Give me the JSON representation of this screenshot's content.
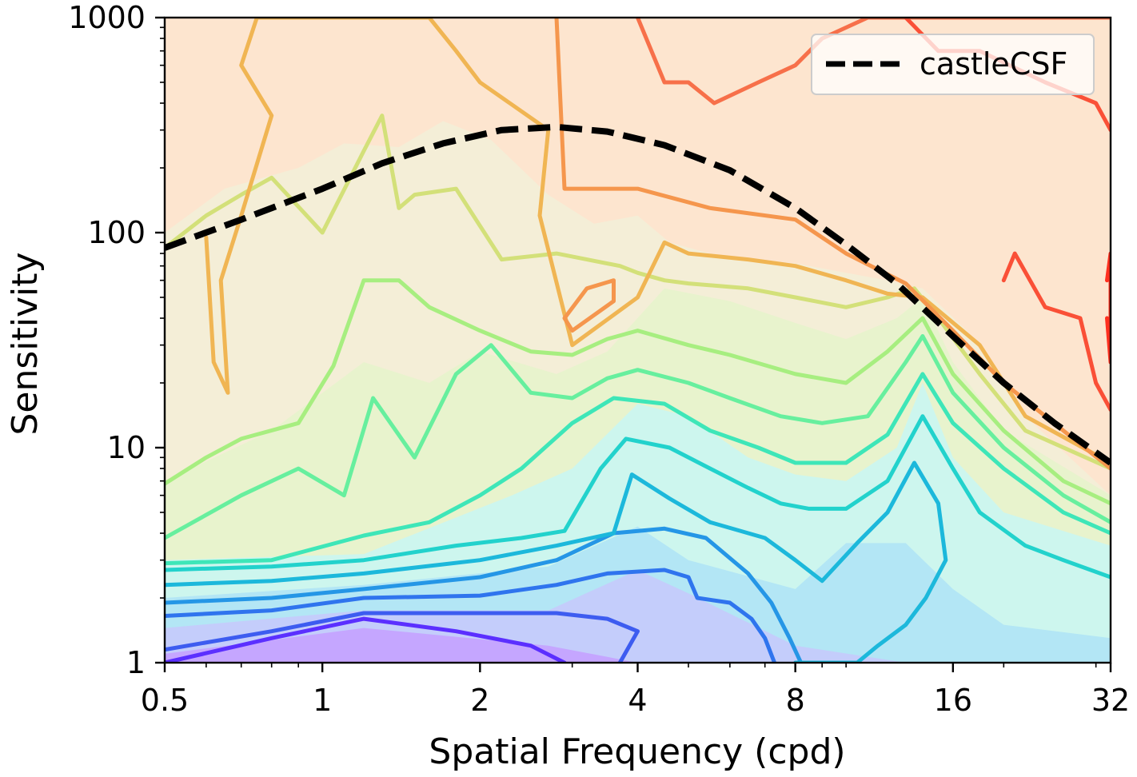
{
  "chart_data": {
    "type": "contour",
    "title": "",
    "xlabel": "Spatial Frequency (cpd)",
    "ylabel": "Sensitivity",
    "x_scale": "log2",
    "y_scale": "log10",
    "xlim": [
      0.5,
      32
    ],
    "ylim": [
      1,
      1000
    ],
    "x_ticks": [
      {
        "value": 0.5,
        "label": "0.5"
      },
      {
        "value": 1,
        "label": "1"
      },
      {
        "value": 2,
        "label": "2"
      },
      {
        "value": 4,
        "label": "4"
      },
      {
        "value": 8,
        "label": "8"
      },
      {
        "value": 16,
        "label": "16"
      },
      {
        "value": 32,
        "label": "32"
      }
    ],
    "y_ticks": [
      {
        "value": 1,
        "label": "1"
      },
      {
        "value": 10,
        "label": "10"
      },
      {
        "value": 100,
        "label": "100"
      },
      {
        "value": 1000,
        "label": "1000"
      }
    ],
    "legend": {
      "position": "top-right",
      "entries": [
        {
          "label": "castleCSF",
          "style": "dashed",
          "color": "#000000"
        }
      ]
    },
    "colormap": "rainbow",
    "series": [
      {
        "name": "castleCSF",
        "style": "dashed",
        "color": "#000000",
        "x": [
          0.5,
          0.7,
          1.0,
          1.3,
          1.7,
          2.2,
          2.8,
          3.5,
          4.5,
          6.0,
          8.0,
          10.0,
          12.5,
          16.0,
          20.0,
          25.0,
          32.0
        ],
        "y": [
          85,
          115,
          160,
          210,
          260,
          300,
          310,
          295,
          255,
          195,
          130,
          88,
          58,
          33,
          20,
          13,
          8.5
        ]
      }
    ],
    "contour_bands": [
      {
        "color": "#c5a6ff",
        "x": [
          0.5,
          1.2,
          2.7,
          4.0,
          8.0,
          13.0,
          20.0,
          32.0
        ],
        "y": [
          1.1,
          1.45,
          1.2,
          1.0,
          1.0,
          1.0,
          1.0,
          1.0
        ]
      },
      {
        "color": "#c4cdfb",
        "x": [
          0.5,
          1.2,
          2.7,
          4.0,
          5.0,
          8.0,
          13.0,
          20.0,
          32.0
        ],
        "y": [
          1.45,
          1.75,
          1.75,
          2.7,
          2.1,
          1.2,
          1.0,
          1.0,
          1.0
        ]
      },
      {
        "color": "#b3e6f5",
        "x": [
          0.5,
          1.2,
          2.7,
          4.0,
          5.0,
          8.0,
          10.0,
          13.0,
          16.0,
          20.0,
          32.0
        ],
        "y": [
          2.0,
          2.3,
          2.8,
          4.3,
          3.0,
          2.2,
          3.6,
          3.6,
          2.2,
          1.5,
          1.3
        ]
      },
      {
        "color": "#cdf6ee",
        "x": [
          0.5,
          1.2,
          2.3,
          3.0,
          4.0,
          5.0,
          6.5,
          8.0,
          10.0,
          12.5,
          14.0,
          16.0,
          20.0,
          32.0
        ],
        "y": [
          3.0,
          3.2,
          6.0,
          8.0,
          16.0,
          14.0,
          9.0,
          7.5,
          7.0,
          10.0,
          20.0,
          9.0,
          5.0,
          3.5
        ]
      },
      {
        "color": "#e8f3cd",
        "x": [
          0.5,
          0.8,
          1.2,
          1.6,
          2.0,
          2.8,
          3.5,
          4.5,
          6.0,
          8.0,
          10.0,
          12.5,
          14.0,
          16.0,
          20.0,
          32.0
        ],
        "y": [
          7.0,
          12.0,
          25.0,
          20.0,
          28.0,
          22.0,
          28.0,
          55.0,
          48.0,
          38.0,
          32.0,
          40.0,
          50.0,
          25.0,
          12.0,
          6.0
        ]
      },
      {
        "color": "#f4eed7",
        "x": [
          0.5,
          0.65,
          0.9,
          1.1,
          1.4,
          1.7,
          2.1,
          2.7,
          3.3,
          4.0,
          4.6,
          5.5,
          6.5,
          8.0,
          10.0,
          12.0,
          14.0,
          17.0,
          22.0,
          32.0
        ],
        "y": [
          100,
          160,
          200,
          260,
          250,
          330,
          270,
          150,
          110,
          120,
          90,
          80,
          75,
          72,
          65,
          60,
          55,
          35,
          14,
          6
        ]
      },
      {
        "color": "#fde5cf",
        "x": [
          0.5,
          0.65,
          0.9,
          1.1,
          1.4,
          1.7,
          2.1,
          2.7,
          3.3,
          4.0,
          4.6,
          5.5,
          6.5,
          8.0,
          10.0,
          12.0,
          14.0,
          17.0,
          22.0,
          32.0
        ],
        "y": [
          1000,
          1000,
          1000,
          1000,
          1000,
          1000,
          1000,
          1000,
          1000,
          1000,
          1000,
          1000,
          1000,
          1000,
          1000,
          1000,
          1000,
          1000,
          1000,
          1000
        ]
      }
    ],
    "contour_lines": [
      {
        "color": "#5b2fff",
        "x": [
          0.5,
          0.8,
          1.2,
          1.8,
          2.5,
          2.9
        ],
        "y": [
          1.0,
          1.3,
          1.6,
          1.4,
          1.2,
          1.0
        ]
      },
      {
        "color": "#3d5cf0",
        "x": [
          0.5,
          0.8,
          1.2,
          2.0,
          2.8,
          3.5,
          4.0,
          3.7
        ],
        "y": [
          1.15,
          1.4,
          1.7,
          1.7,
          1.7,
          1.6,
          1.4,
          1.0
        ]
      },
      {
        "color": "#2f74ee",
        "x": [
          0.5,
          0.8,
          1.2,
          2.0,
          2.8,
          3.5,
          4.5,
          5.0,
          5.2,
          6.0,
          6.6,
          7.0,
          7.3
        ],
        "y": [
          1.65,
          1.75,
          2.0,
          2.05,
          2.3,
          2.6,
          2.7,
          2.5,
          2.0,
          1.9,
          1.6,
          1.3,
          1.0
        ]
      },
      {
        "color": "#2596e6",
        "x": [
          0.5,
          0.8,
          1.2,
          2.0,
          2.8,
          3.6,
          4.5,
          5.4,
          6.5,
          7.2,
          7.8,
          8.2
        ],
        "y": [
          1.9,
          2.0,
          2.2,
          2.5,
          3.0,
          4.0,
          4.2,
          3.8,
          2.6,
          1.9,
          1.3,
          1.0
        ]
      },
      {
        "color": "#1cb8db",
        "x": [
          0.5,
          0.8,
          1.2,
          2.0,
          2.8,
          3.6,
          3.9,
          4.6,
          5.5,
          7.0,
          8.0,
          9.0,
          10.5,
          12.0,
          13.5,
          15.0,
          15.5,
          14.2,
          13.0,
          11.5,
          10.5,
          9.0,
          8.0
        ],
        "y": [
          2.3,
          2.4,
          2.6,
          3.0,
          3.5,
          4.0,
          7.5,
          5.8,
          4.5,
          3.8,
          3.0,
          2.4,
          3.6,
          5.0,
          8.5,
          5.5,
          3.0,
          2.0,
          1.5,
          1.2,
          1.0,
          1.0,
          1.0
        ]
      },
      {
        "color": "#22d2cc",
        "x": [
          0.5,
          0.8,
          1.2,
          1.8,
          2.4,
          2.9,
          3.4,
          3.8,
          4.6,
          5.5,
          6.5,
          7.5,
          8.5,
          10.0,
          12.0,
          14.0,
          16.0,
          18.0,
          22.0,
          26.0,
          32.0
        ],
        "y": [
          2.7,
          2.8,
          3.0,
          3.5,
          3.8,
          4.1,
          8.0,
          11.0,
          10.0,
          8.0,
          6.5,
          5.5,
          5.2,
          5.2,
          7.0,
          14.0,
          8.0,
          5.0,
          3.5,
          3.0,
          2.5
        ]
      },
      {
        "color": "#3ee6b8",
        "x": [
          0.5,
          0.8,
          1.2,
          1.6,
          2.0,
          2.4,
          3.0,
          3.6,
          4.5,
          5.5,
          6.8,
          8.0,
          10.0,
          12.0,
          14.0,
          16.0,
          20.0,
          26.0,
          32.0
        ],
        "y": [
          2.9,
          3.0,
          3.9,
          4.5,
          6.0,
          8.0,
          13.0,
          17.0,
          16.0,
          12.0,
          10.0,
          8.5,
          8.5,
          11.5,
          22.0,
          13.0,
          8.0,
          5.0,
          4.0
        ]
      },
      {
        "color": "#67ef9e",
        "x": [
          0.5,
          0.7,
          0.9,
          1.1,
          1.25,
          1.5,
          1.8,
          2.1,
          2.5,
          3.0,
          3.5,
          4.0,
          5.0,
          6.0,
          7.5,
          9.0,
          11.0,
          13.0,
          14.0,
          16.0,
          20.0,
          26.0,
          32.0
        ],
        "y": [
          3.8,
          6.0,
          8.0,
          6.0,
          17.0,
          9.0,
          22.0,
          30.0,
          18.0,
          17.0,
          21.0,
          23.0,
          20.0,
          17.0,
          14.0,
          13.0,
          14.0,
          25.0,
          33.0,
          18.0,
          10.0,
          6.0,
          4.5
        ]
      },
      {
        "color": "#a7ee80",
        "x": [
          0.5,
          0.6,
          0.7,
          0.9,
          1.05,
          1.2,
          1.4,
          1.6,
          2.0,
          2.5,
          3.0,
          3.5,
          4.0,
          5.0,
          6.0,
          8.0,
          10.0,
          12.0,
          14.0,
          16.0,
          20.0,
          26.0,
          32.0
        ],
        "y": [
          6.8,
          9.0,
          11.0,
          13.0,
          24.0,
          60.0,
          60.0,
          45.0,
          35.0,
          28.0,
          27.0,
          32.0,
          35.0,
          30.0,
          27.0,
          22.0,
          20.0,
          28.0,
          40.0,
          22.0,
          12.0,
          7.0,
          5.5
        ]
      },
      {
        "color": "#d3e079",
        "x": [
          0.5,
          0.6,
          0.7,
          0.8,
          1.0,
          1.2,
          1.3,
          1.4,
          1.5,
          1.8,
          2.2,
          2.8,
          3.2,
          3.7,
          4.0,
          4.5,
          5.0,
          6.5,
          8.0,
          10.0,
          12.0,
          13.5,
          15.0,
          18.0,
          22.0,
          32.0
        ],
        "y": [
          85.0,
          120.0,
          150.0,
          180.0,
          100.0,
          240.0,
          350.0,
          130.0,
          150.0,
          160.0,
          75.0,
          80.0,
          75.0,
          70.0,
          65.0,
          60.0,
          58.0,
          55.0,
          50.0,
          45.0,
          50.0,
          55.0,
          40.0,
          22.0,
          12.0,
          8.0
        ]
      },
      {
        "color": "#f0b553",
        "x": [
          0.6,
          0.62,
          0.66,
          0.64,
          0.7,
          0.8,
          0.7,
          0.75,
          0.8,
          1.6,
          1.8,
          2.0,
          2.7,
          2.6,
          3.0,
          4.0,
          4.5,
          5.0,
          6.5,
          8.0,
          10.0,
          12.0,
          14.0,
          18.0,
          22.0,
          32.0
        ],
        "y": [
          95.0,
          25.0,
          18.0,
          60.0,
          120.0,
          350.0,
          600.0,
          1000.0,
          1000.0,
          1000.0,
          700.0,
          500.0,
          300.0,
          120.0,
          30.0,
          50.0,
          90.0,
          80.0,
          75.0,
          70.0,
          60.0,
          52.0,
          50.0,
          30.0,
          14.0,
          8.5
        ]
      },
      {
        "color": "#f5964d",
        "x": [
          2.9,
          3.2,
          3.6,
          3.6,
          3.0,
          2.9
        ],
        "y": [
          40.0,
          55.0,
          60.0,
          48.0,
          35.0,
          40.0
        ]
      },
      {
        "color": "#f5964d",
        "x": [
          2.8,
          2.9,
          4.0,
          5.5,
          8.0,
          10.0,
          13.0,
          16.0,
          20.0,
          26.0,
          32.0
        ],
        "y": [
          1000.0,
          160.0,
          160.0,
          130.0,
          115.0,
          80.0,
          58.0,
          35.0,
          20.0,
          12.0,
          8.0
        ]
      },
      {
        "color": "#f7704a",
        "x": [
          4.0,
          4.5,
          5.0,
          5.6,
          6.8,
          8.0,
          9.0,
          11.0,
          12.0,
          14.0,
          16.0,
          20.0,
          26.0,
          32.0
        ],
        "y": [
          1000.0,
          500.0,
          500.0,
          400.0,
          500.0,
          600.0,
          800.0,
          1000.0,
          1000.0,
          1000.0,
          1000.0,
          1000.0,
          1000.0,
          1000.0
        ]
      },
      {
        "color": "#fa5037",
        "x": [
          13.0,
          15.0,
          18.0,
          24.0,
          30.0,
          32.0
        ],
        "y": [
          1000.0,
          700.0,
          700.0,
          500.0,
          400.0,
          300.0
        ]
      },
      {
        "color": "#fa5037",
        "x": [
          20.0,
          21.0,
          24.0,
          28.0,
          30.0,
          32.0
        ],
        "y": [
          60.0,
          80.0,
          45.0,
          40.0,
          20.0,
          15.0
        ]
      },
      {
        "color": "#ff2f1f",
        "x": [
          31.5,
          32.0,
          32.0,
          31.5
        ],
        "y": [
          60.0,
          80.0,
          25.0,
          40.0
        ]
      }
    ]
  }
}
